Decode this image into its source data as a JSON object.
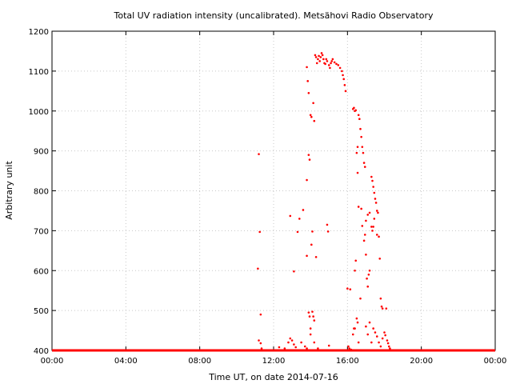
{
  "chart_data": {
    "type": "scatter",
    "title": "Total UV radiation intensity (uncalibrated). Metsähovi Radio Observatory",
    "xlabel": "Time UT, on date 2014-07-16",
    "ylabel": "Arbitrary unit",
    "x_unit": "hours UT",
    "xlim": [
      0,
      24
    ],
    "ylim": [
      400,
      1200
    ],
    "x_ticks": [
      {
        "value": 0,
        "label": "00:00"
      },
      {
        "value": 4,
        "label": "04:00"
      },
      {
        "value": 8,
        "label": "08:00"
      },
      {
        "value": 12,
        "label": "12:00"
      },
      {
        "value": 16,
        "label": "16:00"
      },
      {
        "value": 20,
        "label": "20:00"
      },
      {
        "value": 24,
        "label": "00:00"
      }
    ],
    "y_ticks": [
      {
        "value": 400,
        "label": "400"
      },
      {
        "value": 500,
        "label": "500"
      },
      {
        "value": 600,
        "label": "600"
      },
      {
        "value": 700,
        "label": "700"
      },
      {
        "value": 800,
        "label": "800"
      },
      {
        "value": 900,
        "label": "900"
      },
      {
        "value": 1000,
        "label": "1000"
      },
      {
        "value": 1100,
        "label": "1100"
      },
      {
        "value": 1200,
        "label": "1200"
      }
    ],
    "grid": true,
    "marker_color": "#ff0000",
    "baseline_value": 400,
    "baseline_range": [
      0,
      24
    ],
    "points": [
      [
        11.2,
        892
      ],
      [
        11.25,
        697
      ],
      [
        11.15,
        605
      ],
      [
        11.3,
        490
      ],
      [
        11.2,
        425
      ],
      [
        11.3,
        418
      ],
      [
        11.35,
        405
      ],
      [
        12.3,
        408
      ],
      [
        12.6,
        405
      ],
      [
        12.8,
        420
      ],
      [
        12.9,
        430
      ],
      [
        13.0,
        425
      ],
      [
        13.1,
        415
      ],
      [
        13.2,
        408
      ],
      [
        12.9,
        737
      ],
      [
        13.1,
        598
      ],
      [
        13.3,
        697
      ],
      [
        13.4,
        730
      ],
      [
        13.6,
        752
      ],
      [
        13.5,
        420
      ],
      [
        13.7,
        410
      ],
      [
        13.8,
        405
      ],
      [
        13.8,
        1110
      ],
      [
        13.85,
        1075
      ],
      [
        13.9,
        1045
      ],
      [
        14.0,
        990
      ],
      [
        14.05,
        985
      ],
      [
        14.15,
        1020
      ],
      [
        14.2,
        975
      ],
      [
        13.8,
        827
      ],
      [
        13.9,
        890
      ],
      [
        13.95,
        878
      ],
      [
        13.8,
        637
      ],
      [
        13.9,
        495
      ],
      [
        13.95,
        485
      ],
      [
        14.0,
        455
      ],
      [
        14.1,
        497
      ],
      [
        14.15,
        485
      ],
      [
        14.2,
        475
      ],
      [
        14.1,
        698
      ],
      [
        14.05,
        665
      ],
      [
        14.3,
        634
      ],
      [
        14.0,
        440
      ],
      [
        14.2,
        420
      ],
      [
        14.4,
        405
      ],
      [
        14.25,
        1140
      ],
      [
        14.3,
        1135
      ],
      [
        14.35,
        1120
      ],
      [
        14.4,
        1130
      ],
      [
        14.45,
        1138
      ],
      [
        14.5,
        1125
      ],
      [
        14.55,
        1135
      ],
      [
        14.6,
        1145
      ],
      [
        14.65,
        1140
      ],
      [
        14.7,
        1130
      ],
      [
        14.75,
        1120
      ],
      [
        14.8,
        1118
      ],
      [
        14.85,
        1130
      ],
      [
        14.9,
        1125
      ],
      [
        15.0,
        1115
      ],
      [
        15.05,
        1108
      ],
      [
        15.1,
        1120
      ],
      [
        15.15,
        1125
      ],
      [
        15.2,
        1130
      ],
      [
        15.3,
        1122
      ],
      [
        15.4,
        1118
      ],
      [
        15.5,
        1115
      ],
      [
        15.6,
        1108
      ],
      [
        15.7,
        1100
      ],
      [
        15.75,
        1090
      ],
      [
        15.8,
        1080
      ],
      [
        15.85,
        1065
      ],
      [
        15.9,
        1050
      ],
      [
        14.9,
        715
      ],
      [
        14.95,
        698
      ],
      [
        15.0,
        412
      ],
      [
        16.0,
        555
      ],
      [
        16.15,
        553
      ],
      [
        16.05,
        410
      ],
      [
        16.1,
        405
      ],
      [
        16.2,
        402
      ],
      [
        16.3,
        1005
      ],
      [
        16.35,
        1008
      ],
      [
        16.4,
        1000
      ],
      [
        16.45,
        1002
      ],
      [
        16.6,
        990
      ],
      [
        16.65,
        980
      ],
      [
        16.7,
        955
      ],
      [
        16.75,
        935
      ],
      [
        16.8,
        910
      ],
      [
        16.85,
        895
      ],
      [
        16.9,
        870
      ],
      [
        16.95,
        860
      ],
      [
        16.5,
        895
      ],
      [
        16.55,
        910
      ],
      [
        16.6,
        760
      ],
      [
        16.55,
        845
      ],
      [
        16.4,
        600
      ],
      [
        16.45,
        625
      ],
      [
        16.5,
        480
      ],
      [
        16.55,
        470
      ],
      [
        16.3,
        440
      ],
      [
        16.35,
        455
      ],
      [
        16.4,
        455
      ],
      [
        16.6,
        420
      ],
      [
        16.7,
        530
      ],
      [
        16.75,
        755
      ],
      [
        16.8,
        712
      ],
      [
        16.9,
        675
      ],
      [
        16.95,
        690
      ],
      [
        17.0,
        640
      ],
      [
        17.05,
        580
      ],
      [
        17.1,
        560
      ],
      [
        17.15,
        590
      ],
      [
        17.2,
        600
      ],
      [
        17.0,
        725
      ],
      [
        17.1,
        740
      ],
      [
        17.2,
        745
      ],
      [
        17.3,
        710
      ],
      [
        17.35,
        700
      ],
      [
        17.4,
        710
      ],
      [
        17.3,
        835
      ],
      [
        17.35,
        825
      ],
      [
        17.4,
        810
      ],
      [
        17.45,
        795
      ],
      [
        17.5,
        780
      ],
      [
        17.55,
        770
      ],
      [
        17.6,
        750
      ],
      [
        17.65,
        745
      ],
      [
        17.45,
        730
      ],
      [
        17.6,
        690
      ],
      [
        17.7,
        685
      ],
      [
        17.75,
        630
      ],
      [
        17.8,
        530
      ],
      [
        17.85,
        510
      ],
      [
        17.9,
        505
      ],
      [
        17.0,
        460
      ],
      [
        17.1,
        440
      ],
      [
        17.2,
        470
      ],
      [
        17.3,
        420
      ],
      [
        17.4,
        455
      ],
      [
        17.5,
        445
      ],
      [
        17.6,
        435
      ],
      [
        17.7,
        420
      ],
      [
        17.8,
        410
      ],
      [
        17.9,
        430
      ],
      [
        18.0,
        445
      ],
      [
        18.05,
        438
      ],
      [
        18.1,
        505
      ],
      [
        18.15,
        425
      ],
      [
        18.2,
        418
      ],
      [
        18.25,
        410
      ],
      [
        18.3,
        405
      ]
    ]
  }
}
